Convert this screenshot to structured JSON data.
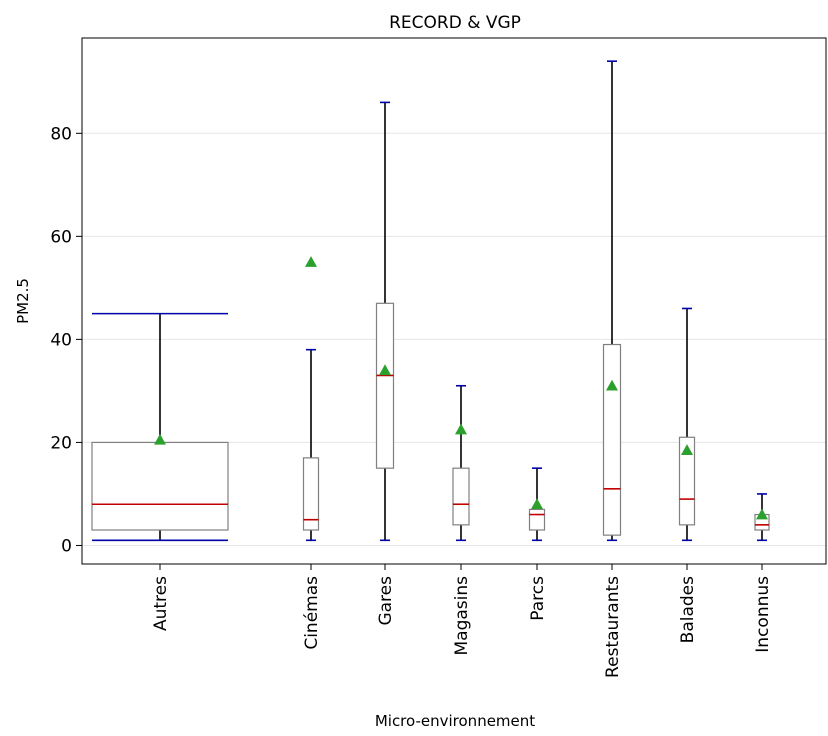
{
  "chart_data": {
    "type": "box",
    "title": "RECORD & VGP",
    "xlabel": "Micro-environnement",
    "ylabel": "PM2.5",
    "ylim": [
      -3.6,
      98.5
    ],
    "yticks": [
      0,
      20,
      40,
      60,
      80
    ],
    "grid": "horizontal",
    "colors": {
      "box": "#808080",
      "median": "#c00000",
      "whisker": "#000000",
      "cap": "#0000aa",
      "mean_marker": "#2ca02c",
      "grid": "#e6e6e6"
    },
    "categories": [
      "Autres",
      "Cinémas",
      "Gares",
      "Magasins",
      "Parcs",
      "Restaurants",
      "Balades",
      "Inconnus"
    ],
    "boxes": [
      {
        "label": "Autres",
        "min": 1,
        "q1": 3,
        "median": 8,
        "q3": 20,
        "max": 45,
        "mean": 20.5
      },
      {
        "label": "Cinémas",
        "min": 1,
        "q1": 3,
        "median": 5,
        "q3": 17,
        "max": 38,
        "mean": 55
      },
      {
        "label": "Gares",
        "min": 1,
        "q1": 15,
        "median": 33,
        "q3": 47,
        "max": 86,
        "mean": 34
      },
      {
        "label": "Magasins",
        "min": 1,
        "q1": 4,
        "median": 8,
        "q3": 15,
        "max": 31,
        "mean": 22.5
      },
      {
        "label": "Parcs",
        "min": 1,
        "q1": 3,
        "median": 6,
        "q3": 7,
        "max": 15,
        "mean": 8
      },
      {
        "label": "Restaurants",
        "min": 1,
        "q1": 2,
        "median": 11,
        "q3": 39,
        "max": 94,
        "mean": 31
      },
      {
        "label": "Balades",
        "min": 1,
        "q1": 4,
        "median": 9,
        "q3": 21,
        "max": 46,
        "mean": 18.5
      },
      {
        "label": "Inconnus",
        "min": 1,
        "q1": 3,
        "median": 4,
        "q3": 6,
        "max": 10,
        "mean": 6
      }
    ]
  }
}
